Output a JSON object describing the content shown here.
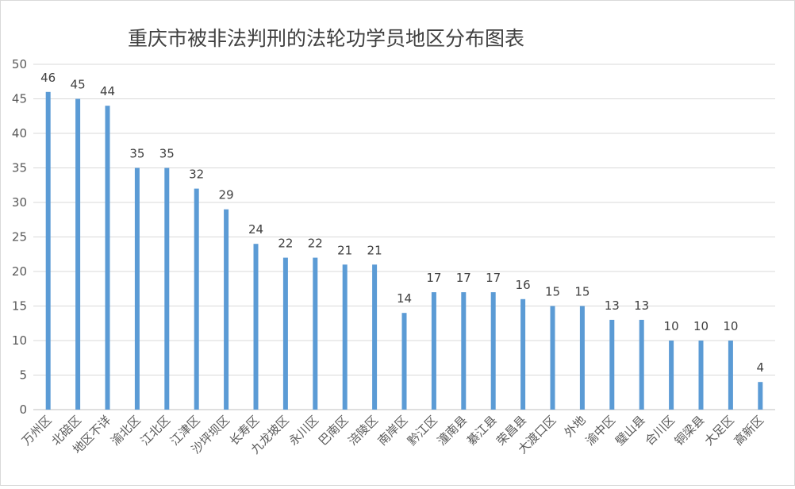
{
  "chart_data": {
    "type": "bar",
    "title": "重庆市被非法判刑的法轮功学员地区分布图表",
    "xlabel": "",
    "ylabel": "",
    "ylim": [
      0,
      50
    ],
    "yticks": [
      0,
      5,
      10,
      15,
      20,
      25,
      30,
      35,
      40,
      45,
      50
    ],
    "grid": true,
    "legend": "none",
    "bar_color": "#5b9bd5",
    "categories": [
      "万州区",
      "北碚区",
      "地区不详",
      "渝北区",
      "江北区",
      "江津区",
      "沙坪坝区",
      "长寿区",
      "九龙坡区",
      "永川区",
      "巴南区",
      "涪陵区",
      "南岸区",
      "黔江区",
      "潼南县",
      "綦江县",
      "荣昌县",
      "大渡口区",
      "外地",
      "渝中区",
      "璧山县",
      "合川区",
      "铜梁县",
      "大足区",
      "高新区"
    ],
    "values": [
      46,
      45,
      44,
      35,
      35,
      32,
      29,
      24,
      22,
      22,
      21,
      21,
      14,
      17,
      17,
      17,
      16,
      15,
      15,
      13,
      13,
      10,
      10,
      10,
      4
    ]
  }
}
